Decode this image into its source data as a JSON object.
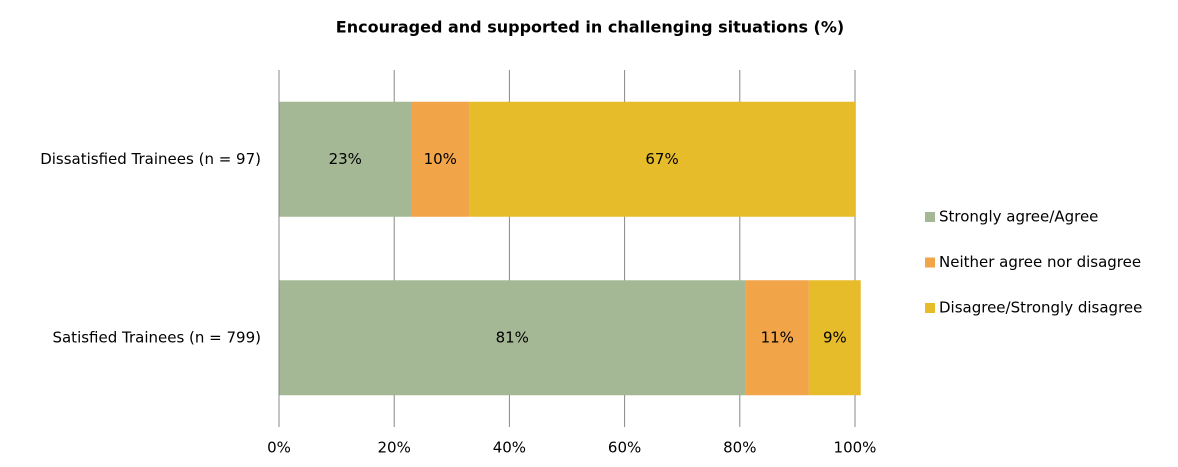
{
  "chart_data": {
    "type": "stacked_barh",
    "title": "Encouraged and supported in challenging situations (%)",
    "categories": [
      "Dissatisfied Trainees (n = 97)",
      "Satisfied Trainees (n = 799)"
    ],
    "series": [
      {
        "name": "Strongly agree/Agree",
        "color": "#a5b895",
        "values": [
          23,
          81
        ],
        "value_labels": [
          "23%",
          "81%"
        ]
      },
      {
        "name": "Neither agree nor disagree",
        "color": "#f2a449",
        "values": [
          10,
          11
        ],
        "value_labels": [
          "10%",
          "11%"
        ]
      },
      {
        "name": "Disagree/Strongly disagree",
        "color": "#e6bc2a",
        "values": [
          67,
          9
        ],
        "value_labels": [
          "67%",
          "9%"
        ]
      }
    ],
    "xlim": [
      0,
      100
    ],
    "xticks": [
      {
        "value": 0,
        "label": "0%"
      },
      {
        "value": 20,
        "label": "20%"
      },
      {
        "value": 40,
        "label": "40%"
      },
      {
        "value": 60,
        "label": "60%"
      },
      {
        "value": 80,
        "label": "80%"
      },
      {
        "value": 100,
        "label": "100%"
      }
    ],
    "grid": true,
    "legend": "right"
  }
}
